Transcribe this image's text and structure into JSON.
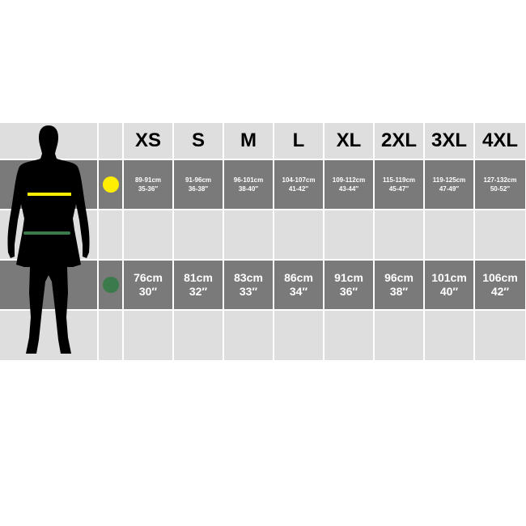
{
  "sizes": [
    "XS",
    "S",
    "M",
    "L",
    "XL",
    "2XL",
    "3XL",
    "4XL"
  ],
  "chest": {
    "indicator_color": "#ffee00",
    "cm": [
      "89-91cm",
      "91-96cm",
      "96-101cm",
      "104-107cm",
      "109-112cm",
      "115-119cm",
      "119-125cm",
      "127-132cm"
    ],
    "inches": [
      "35-36″",
      "36-38″",
      "38-40″",
      "41-42″",
      "43-44″",
      "45-47″",
      "47-49″",
      "50-52″"
    ]
  },
  "waist": {
    "indicator_color": "#3b7a4a",
    "cm": [
      "76cm",
      "81cm",
      "83cm",
      "86cm",
      "91cm",
      "96cm",
      "101cm",
      "106cm"
    ],
    "inches": [
      "30″",
      "32″",
      "33″",
      "34″",
      "36″",
      "38″",
      "40″",
      "42″"
    ]
  },
  "colors": {
    "dark_band": "#7a7a7a",
    "light_band": "#dedede"
  }
}
